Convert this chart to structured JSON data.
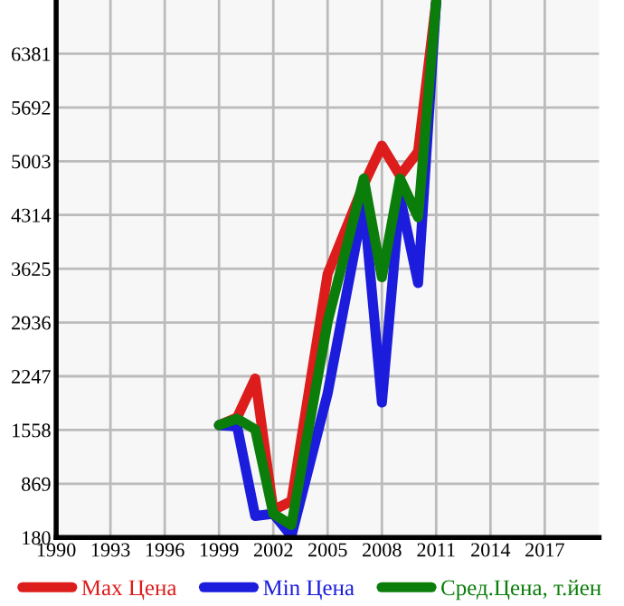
{
  "chart_data": {
    "type": "line",
    "x": [
      1999,
      2000,
      2001,
      2002,
      2003,
      2005,
      2007,
      2008,
      2009,
      2010,
      2011
    ],
    "series": [
      {
        "name": "Max Цена",
        "color": "#dd1c1c",
        "values": [
          1620,
          1719,
          2217,
          531,
          646,
          3557,
          4705,
          5203,
          4820,
          5126,
          7050
        ]
      },
      {
        "name": "Min Цена",
        "color": "#1c1cdd",
        "values": [
          1620,
          1604,
          456,
          484,
          200,
          2024,
          4475,
          1910,
          4551,
          3442,
          7050
        ]
      },
      {
        "name": "Сред.Цена, т.йен",
        "color": "#0a7d0a",
        "values": [
          1620,
          1703,
          1565,
          484,
          341,
          2943,
          4781,
          3517,
          4781,
          4285,
          7050
        ]
      }
    ],
    "xlim": [
      1990,
      2020
    ],
    "xticks": [
      1990,
      1993,
      1996,
      1999,
      2002,
      2005,
      2008,
      2011,
      2014,
      2017
    ],
    "ylim": [
      180,
      7070
    ],
    "yticks": [
      180,
      869,
      1558,
      2247,
      2936,
      3625,
      4314,
      5003,
      5692,
      6381
    ],
    "grid": true,
    "legend": "bottom",
    "marker": "none",
    "line_style": "solid"
  }
}
